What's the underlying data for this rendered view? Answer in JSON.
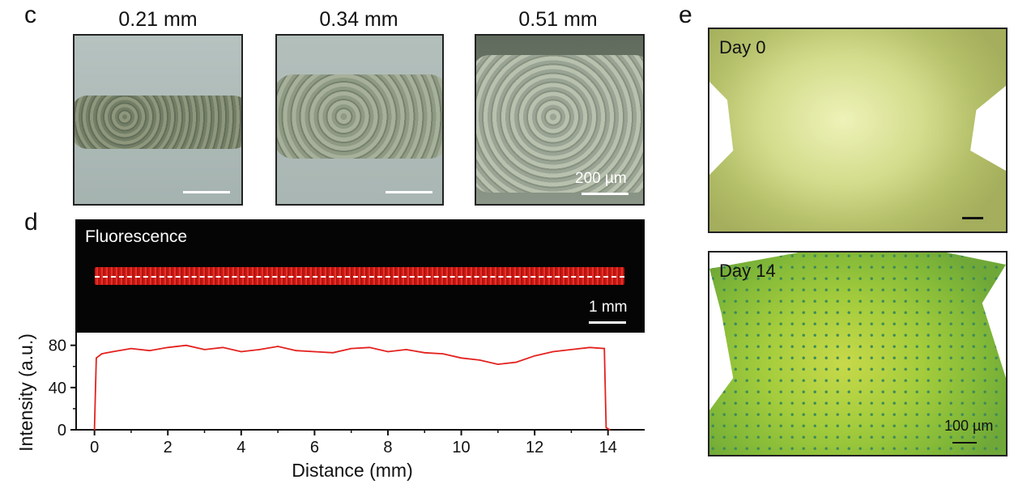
{
  "panel_c": {
    "letter": "c",
    "images": [
      {
        "caption": "0.21 mm"
      },
      {
        "caption": "0.34 mm"
      },
      {
        "caption": "0.51 mm",
        "scale_label": "200 µm"
      }
    ]
  },
  "panel_d": {
    "letter": "d",
    "image_label": "Fluorescence",
    "scale_label": "1 mm"
  },
  "panel_e": {
    "letter": "e",
    "images": [
      {
        "label": "Day 0"
      },
      {
        "label": "Day 14",
        "scale_label": "100 µm"
      }
    ]
  },
  "colors": {
    "trace": "#e3211e",
    "dash": "#ffffff",
    "day0_tint": "#d6e08a",
    "day14_tint": "#9ccc3a"
  },
  "chart_data": {
    "type": "line",
    "xlabel": "Distance (mm)",
    "ylabel": "Intensity (a.u.)",
    "xlim": [
      -0.5,
      15
    ],
    "ylim": [
      0,
      92
    ],
    "xticks": [
      0,
      2,
      4,
      6,
      8,
      10,
      12,
      14
    ],
    "yticks": [
      0,
      40,
      80
    ],
    "series": [
      {
        "x": [
          0,
          0.05,
          0.2,
          0.5,
          1,
          1.5,
          2,
          2.5,
          3,
          3.5,
          4,
          4.5,
          5,
          5.5,
          6,
          6.5,
          7,
          7.5,
          8,
          8.5,
          9,
          9.5,
          10,
          10.5,
          11,
          11.5,
          12,
          12.5,
          13,
          13.5,
          13.9,
          13.95,
          14.05
        ],
        "y": [
          0,
          68,
          72,
          74,
          77,
          75,
          78,
          80,
          76,
          78,
          74,
          76,
          79,
          75,
          74,
          73,
          77,
          78,
          74,
          76,
          73,
          72,
          68,
          66,
          62,
          64,
          70,
          74,
          76,
          78,
          77,
          2,
          0
        ]
      }
    ]
  }
}
